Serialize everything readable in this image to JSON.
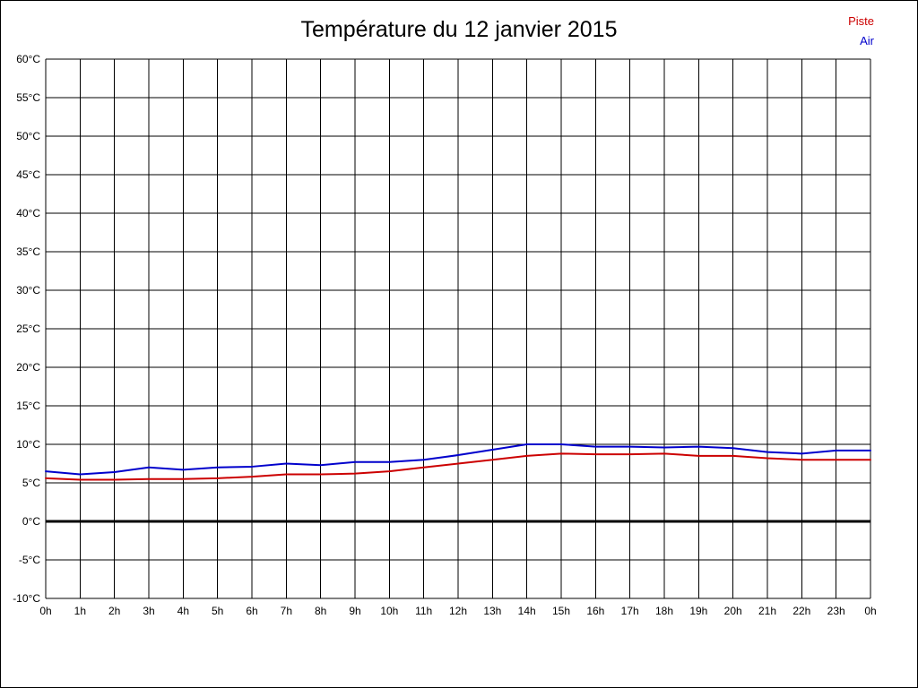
{
  "title": "Température du 12 janvier 2015",
  "legend": {
    "piste_label": "Piste",
    "air_label": "Air"
  },
  "colors": {
    "piste": "#cc0000",
    "air": "#0000cc",
    "grid": "#000000",
    "zero_line": "#000000",
    "background": "#ffffff"
  },
  "chart_data": {
    "type": "line",
    "title": "Température du 12 janvier 2015",
    "x_labels": [
      "0h",
      "1h",
      "2h",
      "3h",
      "4h",
      "5h",
      "6h",
      "7h",
      "8h",
      "9h",
      "10h",
      "11h",
      "12h",
      "13h",
      "14h",
      "15h",
      "16h",
      "17h",
      "18h",
      "19h",
      "20h",
      "21h",
      "22h",
      "23h",
      "0h"
    ],
    "ylim": [
      -10,
      60
    ],
    "ytick_step": 5,
    "ytick_suffix": "°C",
    "grid": true,
    "zero_line_value": 0,
    "legend_position": "top-right",
    "series": [
      {
        "name": "Piste",
        "color": "#cc0000",
        "values": [
          5.6,
          5.4,
          5.4,
          5.5,
          5.5,
          5.6,
          5.8,
          6.1,
          6.1,
          6.2,
          6.5,
          7.0,
          7.5,
          8.0,
          8.5,
          8.8,
          8.7,
          8.7,
          8.8,
          8.5,
          8.5,
          8.2,
          8.0,
          8.0,
          8.0
        ]
      },
      {
        "name": "Air",
        "color": "#0000cc",
        "values": [
          6.5,
          6.1,
          6.4,
          7.0,
          6.7,
          7.0,
          7.1,
          7.5,
          7.3,
          7.7,
          7.7,
          8.0,
          8.6,
          9.3,
          10.0,
          10.0,
          9.7,
          9.7,
          9.6,
          9.7,
          9.5,
          9.0,
          8.8,
          9.2,
          9.2
        ]
      }
    ]
  }
}
